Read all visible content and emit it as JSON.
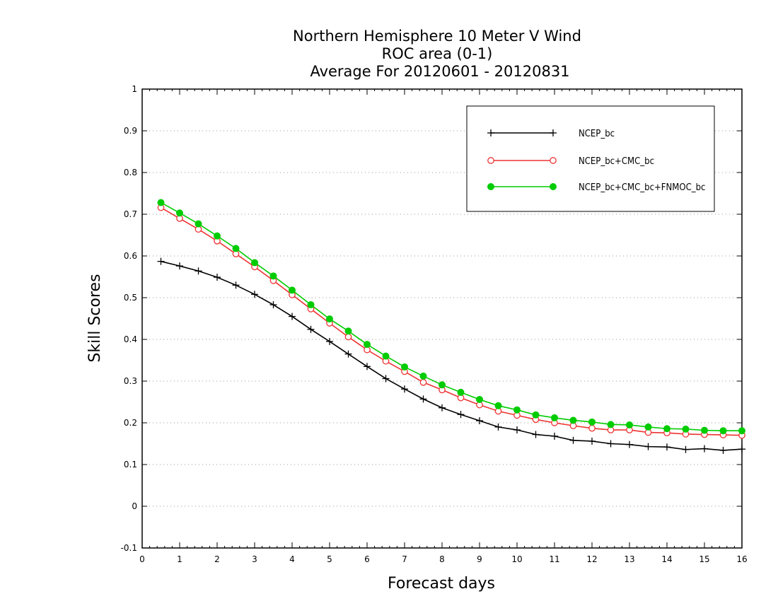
{
  "chart_data": {
    "type": "line",
    "title_lines": [
      "Northern Hemisphere 10 Meter V Wind",
      "ROC area (0-1)",
      "Average For 20120601 - 20120831"
    ],
    "xlabel": "Forecast days",
    "ylabel": "Skill Scores",
    "xlim": [
      0,
      16
    ],
    "ylim": [
      -0.1,
      1
    ],
    "x_ticks": [
      0,
      1,
      2,
      3,
      4,
      5,
      6,
      7,
      8,
      9,
      10,
      11,
      12,
      13,
      14,
      15,
      16
    ],
    "y_ticks": [
      -0.1,
      0,
      0.1,
      0.2,
      0.3,
      0.4,
      0.5,
      0.6,
      0.7,
      0.8,
      0.9,
      1
    ],
    "y_tick_labels": [
      "-0.1",
      "0",
      "0.1",
      "0.2",
      "0.3",
      "0.4",
      "0.5",
      "0.6",
      "0.7",
      "0.8",
      "0.9",
      "1"
    ],
    "grid": "horizontal dotted",
    "legend_position": "top-right",
    "x": [
      0.5,
      1,
      1.5,
      2,
      2.5,
      3,
      3.5,
      4,
      4.5,
      5,
      5.5,
      6,
      6.5,
      7,
      7.5,
      8,
      8.5,
      9,
      9.5,
      10,
      10.5,
      11,
      11.5,
      12,
      12.5,
      13,
      13.5,
      14,
      14.5,
      15,
      15.5,
      16
    ],
    "series": [
      {
        "name": "NCEP_bc",
        "color": "#000000",
        "marker": "plus",
        "values": [
          0.587,
          0.576,
          0.564,
          0.549,
          0.53,
          0.508,
          0.483,
          0.455,
          0.424,
          0.395,
          0.365,
          0.335,
          0.306,
          0.281,
          0.257,
          0.236,
          0.22,
          0.205,
          0.19,
          0.183,
          0.172,
          0.168,
          0.158,
          0.156,
          0.15,
          0.148,
          0.143,
          0.142,
          0.136,
          0.138,
          0.134,
          0.137
        ]
      },
      {
        "name": "NCEP_bc+CMC_bc",
        "color": "#ee3333",
        "marker": "open-circle",
        "values": [
          0.716,
          0.69,
          0.664,
          0.636,
          0.605,
          0.574,
          0.541,
          0.507,
          0.473,
          0.439,
          0.406,
          0.375,
          0.348,
          0.323,
          0.297,
          0.279,
          0.26,
          0.243,
          0.228,
          0.218,
          0.208,
          0.2,
          0.193,
          0.187,
          0.183,
          0.183,
          0.177,
          0.176,
          0.173,
          0.172,
          0.171,
          0.17
        ]
      },
      {
        "name": "NCEP_bc+CMC_bc+FNMOC_bc",
        "color": "#00cc00",
        "marker": "filled-circle",
        "values": [
          0.728,
          0.703,
          0.677,
          0.648,
          0.618,
          0.584,
          0.552,
          0.518,
          0.483,
          0.449,
          0.42,
          0.388,
          0.36,
          0.334,
          0.312,
          0.291,
          0.273,
          0.256,
          0.241,
          0.231,
          0.219,
          0.212,
          0.206,
          0.202,
          0.196,
          0.195,
          0.19,
          0.186,
          0.185,
          0.182,
          0.181,
          0.181
        ]
      }
    ]
  }
}
